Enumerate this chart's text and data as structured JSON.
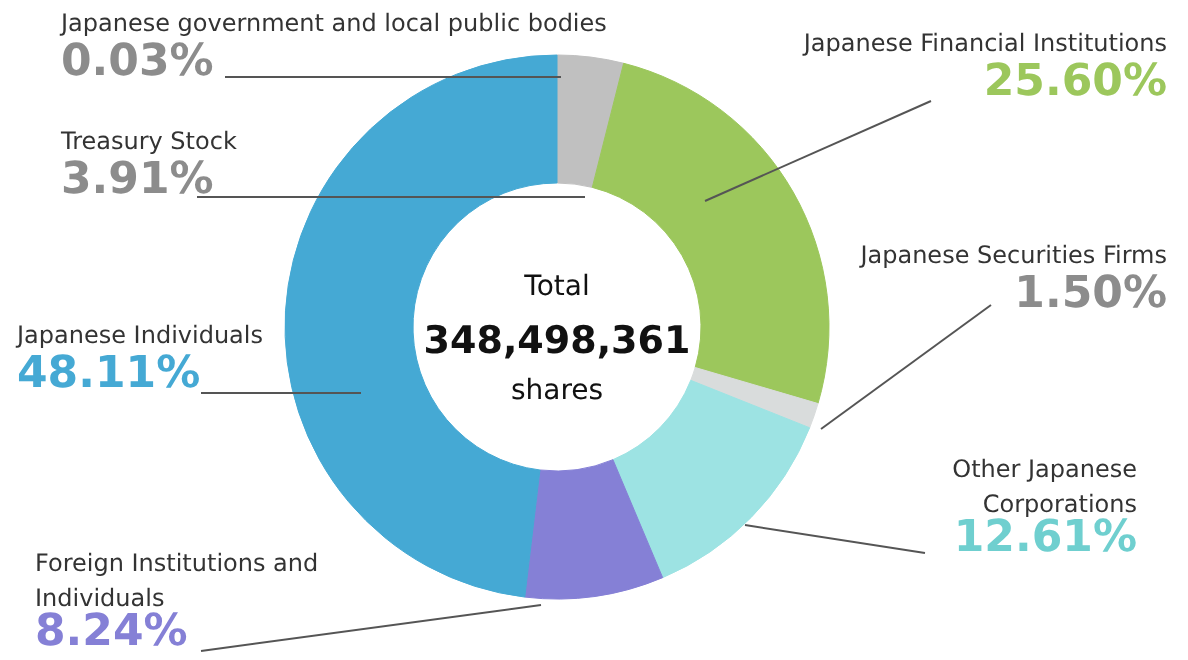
{
  "chart_data": {
    "type": "donut",
    "categories": [
      "Japanese government and local public bodies",
      "Treasury Stock",
      "Japanese Financial Institutions",
      "Japanese Securities Firms",
      "Other Japanese Corporations",
      "Foreign Institutions and Individuals",
      "Japanese Individuals"
    ],
    "values": [
      0.03,
      3.91,
      25.6,
      1.5,
      12.61,
      8.24,
      48.11
    ],
    "value_labels": [
      "0.03%",
      "3.91%",
      "25.60%",
      "1.50%",
      "12.61%",
      "8.24%",
      "48.11%"
    ],
    "colors": [
      "#a8a8a8",
      "#c0c0c0",
      "#9cc75c",
      "#d9dcdc",
      "#9de3e3",
      "#8580d6",
      "#45a9d4"
    ],
    "annotations": [
      "Total",
      "348,498,361",
      "shares"
    ]
  }
}
